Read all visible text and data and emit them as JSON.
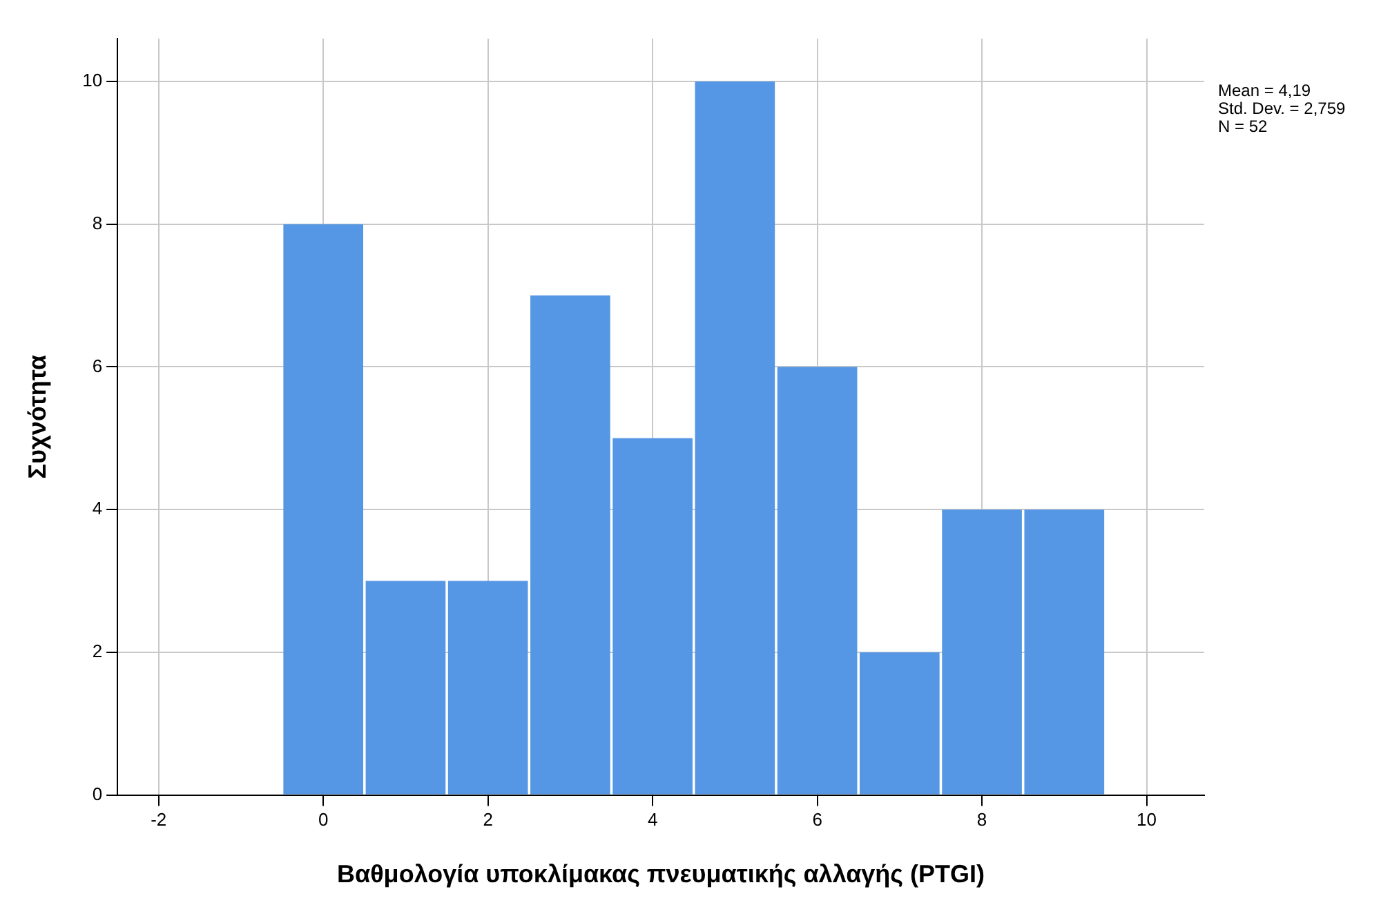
{
  "chart_data": {
    "type": "histogram",
    "xlabel": "Βαθμολογία υποκλίμακας πνευματικής αλλαγής (PTGI)",
    "ylabel": "Συχνότητα",
    "bins": [
      -0.5,
      0.5,
      1.5,
      2.5,
      3.5,
      4.5,
      5.5,
      6.5,
      7.5,
      8.5,
      9.5
    ],
    "values": [
      8,
      3,
      3,
      7,
      5,
      10,
      6,
      2,
      4,
      4
    ],
    "color": "#5597e4",
    "xlim": [
      -2.5,
      10.7
    ],
    "xticks": [
      -2,
      0,
      2,
      4,
      6,
      8,
      10
    ],
    "ylim": [
      0,
      10.6
    ],
    "yticks": [
      0,
      2,
      4,
      6,
      8,
      10
    ],
    "grid": true,
    "annotations": [
      "Mean = 4,19",
      "Std. Dev. = 2,759",
      "N = 52"
    ]
  }
}
